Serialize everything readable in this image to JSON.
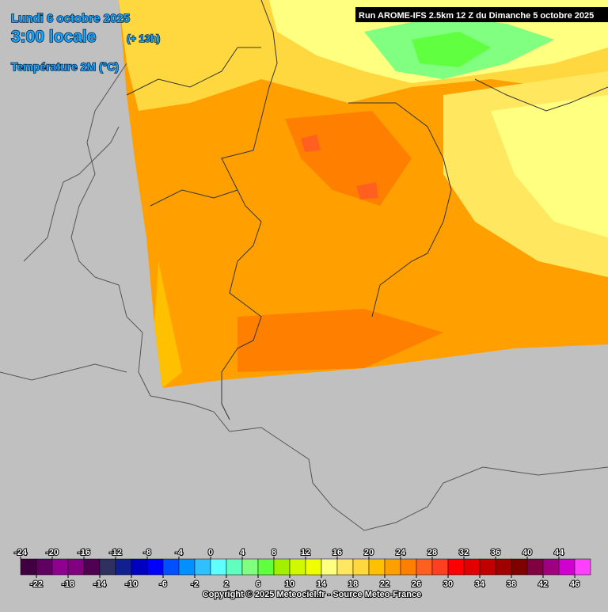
{
  "header": {
    "date": "Lundi 6 octobre 2025",
    "time": "3:00 locale",
    "lead": "(+ 13h)",
    "parameter": "Température 2M (°C)",
    "run": "Run AROME-IFS 2.5km 12 Z du Dimanche 5 octobre 2025"
  },
  "legend": {
    "top_labels": [
      -24,
      -20,
      -16,
      -12,
      -8,
      -4,
      0,
      4,
      8,
      12,
      16,
      20,
      24,
      28,
      32,
      36,
      40,
      44
    ],
    "bottom_labels": [
      -22,
      -18,
      -14,
      -10,
      -6,
      -2,
      2,
      6,
      10,
      14,
      18,
      22,
      26,
      30,
      34,
      38,
      42,
      46
    ],
    "colors": [
      "#400040",
      "#600060",
      "#900090",
      "#800080",
      "#500050",
      "#303060",
      "#102090",
      "#0000c0",
      "#0000ff",
      "#0050ff",
      "#0090ff",
      "#30c0ff",
      "#60ffff",
      "#60ffc0",
      "#80ff80",
      "#60ff40",
      "#a0f000",
      "#d0f800",
      "#f0ff00",
      "#ffff80",
      "#ffe860",
      "#ffd840",
      "#ffc000",
      "#ffa000",
      "#ff8000",
      "#ff6020",
      "#ff4020",
      "#ff0000",
      "#e00000",
      "#c00000",
      "#a00000",
      "#800000",
      "#800040",
      "#a00080",
      "#d000d0",
      "#ff40ff"
    ]
  },
  "footer": {
    "copyright": "Copyright © 2025 Meteociel.fr - Source Meteo-France"
  }
}
